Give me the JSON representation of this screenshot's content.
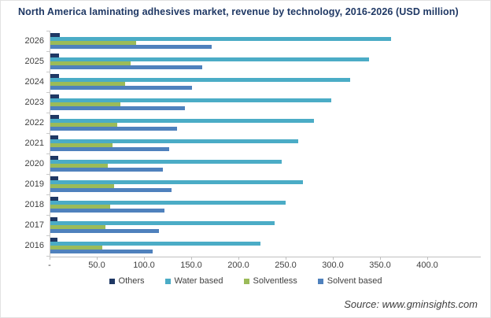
{
  "page": {
    "source": "Source: www.gminsights.com"
  },
  "chart_data": {
    "type": "bar",
    "orientation": "horizontal",
    "title": "North America laminating adhesives market, revenue by technology, 2016-2026 (USD million)",
    "categories": [
      "2026",
      "2025",
      "2024",
      "2023",
      "2022",
      "2021",
      "2020",
      "2019",
      "2018",
      "2017",
      "2016"
    ],
    "series": [
      {
        "name": "Others",
        "color": "#1F3864",
        "values": [
          11,
          10,
          10,
          10,
          10,
          9,
          9,
          9,
          9,
          8,
          8
        ]
      },
      {
        "name": "Water based",
        "color": "#4BACC6",
        "values": [
          362,
          338,
          318,
          298,
          280,
          263,
          246,
          268,
          250,
          238,
          223
        ]
      },
      {
        "name": "Solventless",
        "color": "#9BBB59",
        "values": [
          92,
          86,
          80,
          75,
          72,
          67,
          62,
          68,
          64,
          59,
          56
        ]
      },
      {
        "name": "Solvent based",
        "color": "#4F81BD",
        "values": [
          172,
          162,
          151,
          143,
          135,
          127,
          120,
          129,
          122,
          116,
          109
        ]
      }
    ],
    "x_ticks": {
      "labels": [
        "-",
        "50.0",
        "100.0",
        "150.0",
        "200.0",
        "250.0",
        "300.0",
        "350.0",
        "400.0"
      ],
      "values": [
        0,
        50,
        100,
        150,
        200,
        250,
        300,
        350,
        400
      ]
    },
    "xlim": [
      0,
      415
    ],
    "ylabel": "",
    "xlabel": "",
    "grid": false,
    "legend_position": "bottom"
  }
}
